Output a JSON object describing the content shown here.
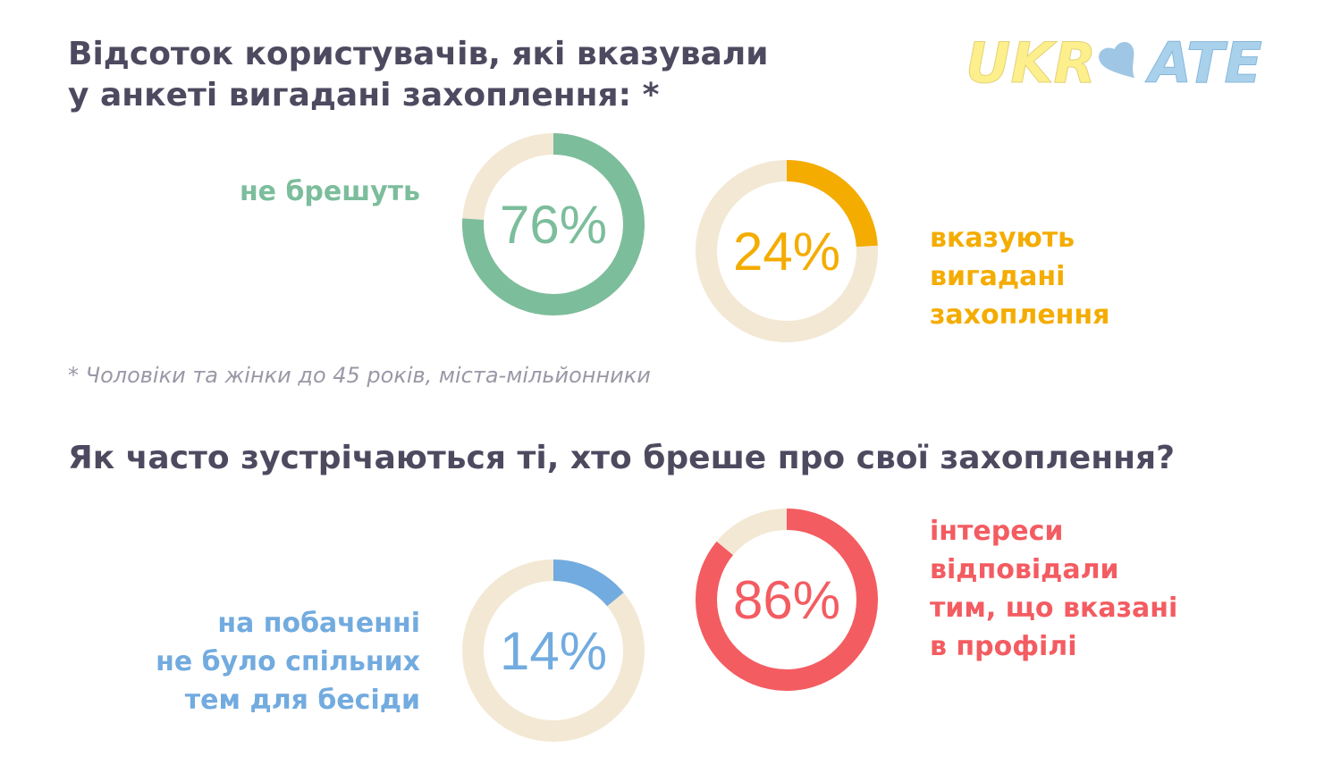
{
  "title_1": "Відсоток користувачів, які вказували\nу анкеті вигадані захоплення: *",
  "title_2": "Як часто зустрічаються ті, хто бреше про свої захоплення?",
  "footnote": "* Чоловіки та жінки до 45 років, міста-мільйонники",
  "logo": {
    "text_left": "UKR",
    "text_right": "ATE"
  },
  "colors": {
    "track": "#f3e8d4",
    "green": "#7cbd9c",
    "orange": "#f4ac00",
    "blue": "#72abdf",
    "red": "#f35c61",
    "heading": "#4d4a60",
    "footnote": "#9a98a6"
  },
  "chart_data": [
    {
      "type": "pie",
      "title": "Відсоток користувачів, які вказували у анкеті вигадані захоплення: *",
      "donuts": [
        {
          "id": "green",
          "label": "не брешуть",
          "value": 76,
          "display": "76%",
          "color": "#7cbd9c"
        },
        {
          "id": "orange",
          "label": "вказують\nвигадані\nзахоплення",
          "value": 24,
          "display": "24%",
          "color": "#f4ac00"
        }
      ]
    },
    {
      "type": "pie",
      "title": "Як часто зустрічаються ті, хто бреше про свої захоплення?",
      "donuts": [
        {
          "id": "blue",
          "label": "на побаченні\nне було спільних\nтем для бесіди",
          "value": 14,
          "display": "14%",
          "color": "#72abdf"
        },
        {
          "id": "red",
          "label": "інтереси\nвідповідали\nтим, що вказані\nв профілі",
          "value": 86,
          "display": "86%",
          "color": "#f35c61"
        }
      ]
    }
  ]
}
